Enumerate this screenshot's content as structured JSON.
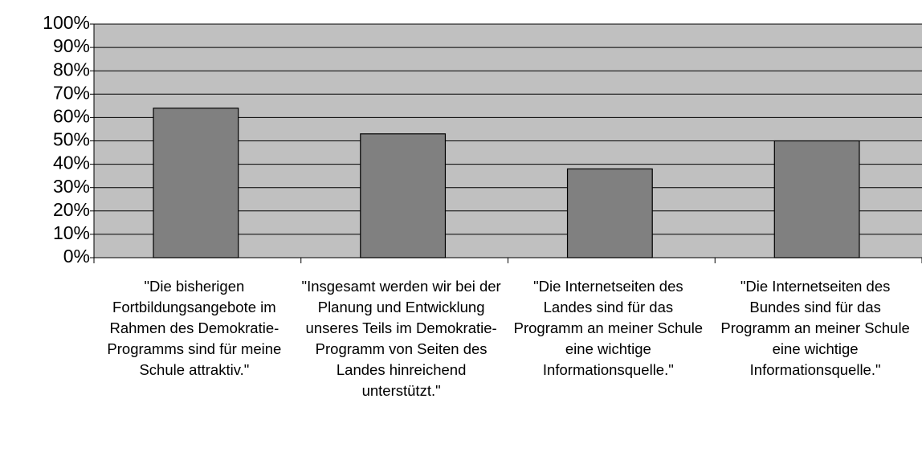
{
  "chart_data": {
    "type": "bar",
    "categories": [
      "\"Die bisherigen Fortbildungsangebote im Rahmen des Demokratie-Programms sind für meine Schule attraktiv.\"",
      "\"Insgesamt werden wir bei der Planung und Entwicklung unseres Teils im Demokratie-Programm von Seiten des Landes hinreichend unterstützt.\"",
      "\"Die Internetseiten des Landes sind für das Programm an meiner Schule eine wichtige Informationsquelle.\"",
      "\"Die Internetseiten des Bundes sind für das Programm an meiner Schule eine wichtige Informationsquelle.\""
    ],
    "values": [
      64,
      53,
      38,
      50
    ],
    "color": "#808080",
    "background": "#c0c0c0",
    "ylim": [
      0,
      100
    ],
    "yticks": [
      {
        "value": 0,
        "label": "0%"
      },
      {
        "value": 10,
        "label": "10%"
      },
      {
        "value": 20,
        "label": "20%"
      },
      {
        "value": 30,
        "label": "30%"
      },
      {
        "value": 40,
        "label": "40%"
      },
      {
        "value": 50,
        "label": "50%"
      },
      {
        "value": 60,
        "label": "60%"
      },
      {
        "value": 70,
        "label": "70%"
      },
      {
        "value": 80,
        "label": "80%"
      },
      {
        "value": 90,
        "label": "90%"
      },
      {
        "value": 100,
        "label": "100%"
      }
    ],
    "grid": true
  }
}
